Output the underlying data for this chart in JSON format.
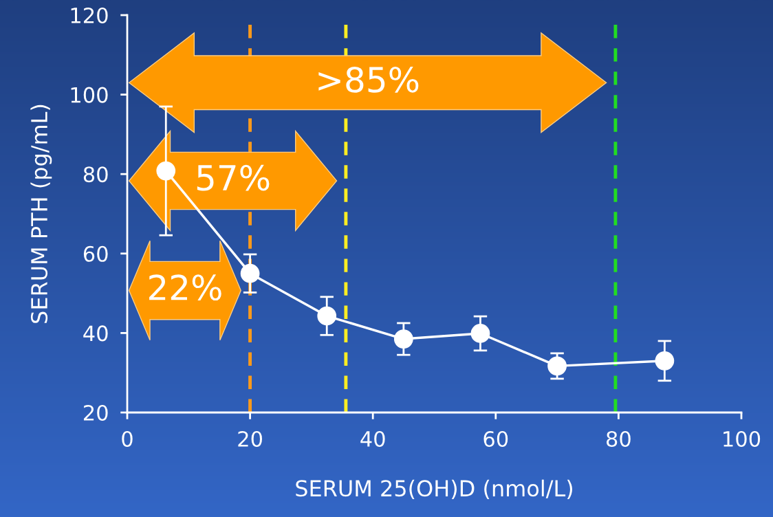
{
  "chart_data": {
    "type": "line",
    "xlabel": "SERUM 25(OH)D (nmol/L)",
    "ylabel": "SERUM PTH (pg/mL)",
    "x": [
      6.3,
      20,
      32.5,
      45,
      57.5,
      70,
      87.5
    ],
    "series": [
      {
        "color": "#ffffff",
        "values": [
          80.8,
          55,
          44.3,
          38.5,
          39.9,
          31.7,
          33
        ],
        "errors": [
          16.2,
          4.8,
          4.8,
          4,
          4.3,
          3.2,
          5
        ]
      }
    ],
    "marker": "circle",
    "line_style": "solid",
    "grid": false,
    "legend": false,
    "xlim": [
      0,
      100
    ],
    "xticks": [
      0,
      20,
      40,
      60,
      80,
      100
    ],
    "ylim": [
      20,
      120
    ],
    "yticks": [
      20,
      40,
      60,
      80,
      100,
      120
    ],
    "ref_lines": [
      {
        "axis": "x",
        "value": 20,
        "color": "#ff9a1a",
        "line_style": "dashed"
      },
      {
        "axis": "x",
        "value": 35.6,
        "color": "#ffee22",
        "line_style": "dashed"
      },
      {
        "axis": "x",
        "value": 79.5,
        "color": "#22dd22",
        "line_style": "dashed"
      }
    ],
    "annotations": [
      "22%",
      "57%",
      ">85%"
    ]
  }
}
